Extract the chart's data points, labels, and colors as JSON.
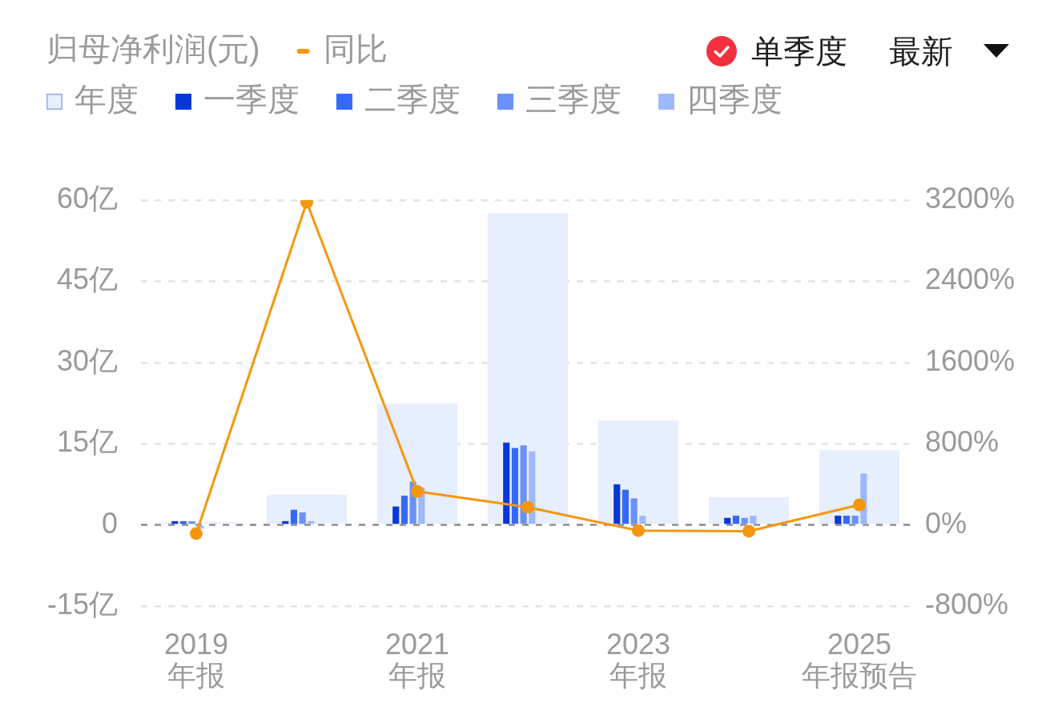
{
  "chart_data": {
    "type": "bar",
    "title": "归母净利润(元)",
    "categories": [
      "2019\n年报",
      null,
      "2021\n年报",
      null,
      "2023\n年报",
      null,
      "2025\n年报预告"
    ],
    "series": [
      {
        "name": "年度",
        "color": "#e7eefe",
        "values": [
          0.5,
          5.6,
          22.4,
          57.6,
          19.3,
          5.1,
          13.8
        ]
      },
      {
        "name": "一季度",
        "color": "#0538d9",
        "values": [
          0.7,
          0.7,
          3.4,
          15.2,
          7.5,
          1.3,
          1.7
        ]
      },
      {
        "name": "二季度",
        "color": "#3369fc",
        "values": [
          0.7,
          2.8,
          5.4,
          14.2,
          6.5,
          1.7,
          1.7
        ]
      },
      {
        "name": "三季度",
        "color": "#6991f8",
        "values": [
          0.7,
          2.3,
          8.0,
          14.7,
          4.9,
          1.3,
          1.7
        ]
      },
      {
        "name": "四季度",
        "color": "#9eb8fb",
        "values": [
          -0.7,
          0.7,
          6.9,
          13.6,
          1.7,
          1.7,
          9.5
        ]
      },
      {
        "name": "同比",
        "type": "line",
        "axis": "y2",
        "color": "#f4970f",
        "values": [
          -85,
          3180,
          330,
          175,
          -56,
          -62,
          198
        ]
      }
    ],
    "ylim": [
      -15,
      60
    ],
    "yticks": [
      {
        "value": -15,
        "label": "-15亿"
      },
      {
        "value": 0,
        "label": "0"
      },
      {
        "value": 15,
        "label": "15亿"
      },
      {
        "value": 30,
        "label": "30亿"
      },
      {
        "value": 45,
        "label": "45亿"
      },
      {
        "value": 60,
        "label": "60亿"
      }
    ],
    "y2lim": [
      -800,
      3200
    ],
    "y2ticks": [
      {
        "value": -800,
        "label": "-800%"
      },
      {
        "value": 0,
        "label": "0%"
      },
      {
        "value": 800,
        "label": "800%"
      },
      {
        "value": 1600,
        "label": "1600%"
      },
      {
        "value": 2400,
        "label": "2400%"
      },
      {
        "value": 3200,
        "label": "3200%"
      }
    ],
    "ref_lines": [
      {
        "axis": "y",
        "value": 0,
        "color": "#8c8c8c",
        "line_style": "dashed"
      }
    ],
    "grid": "y",
    "legend": "top left",
    "marker": "circle",
    "annotations": [
      "单季度",
      "最新"
    ]
  }
}
